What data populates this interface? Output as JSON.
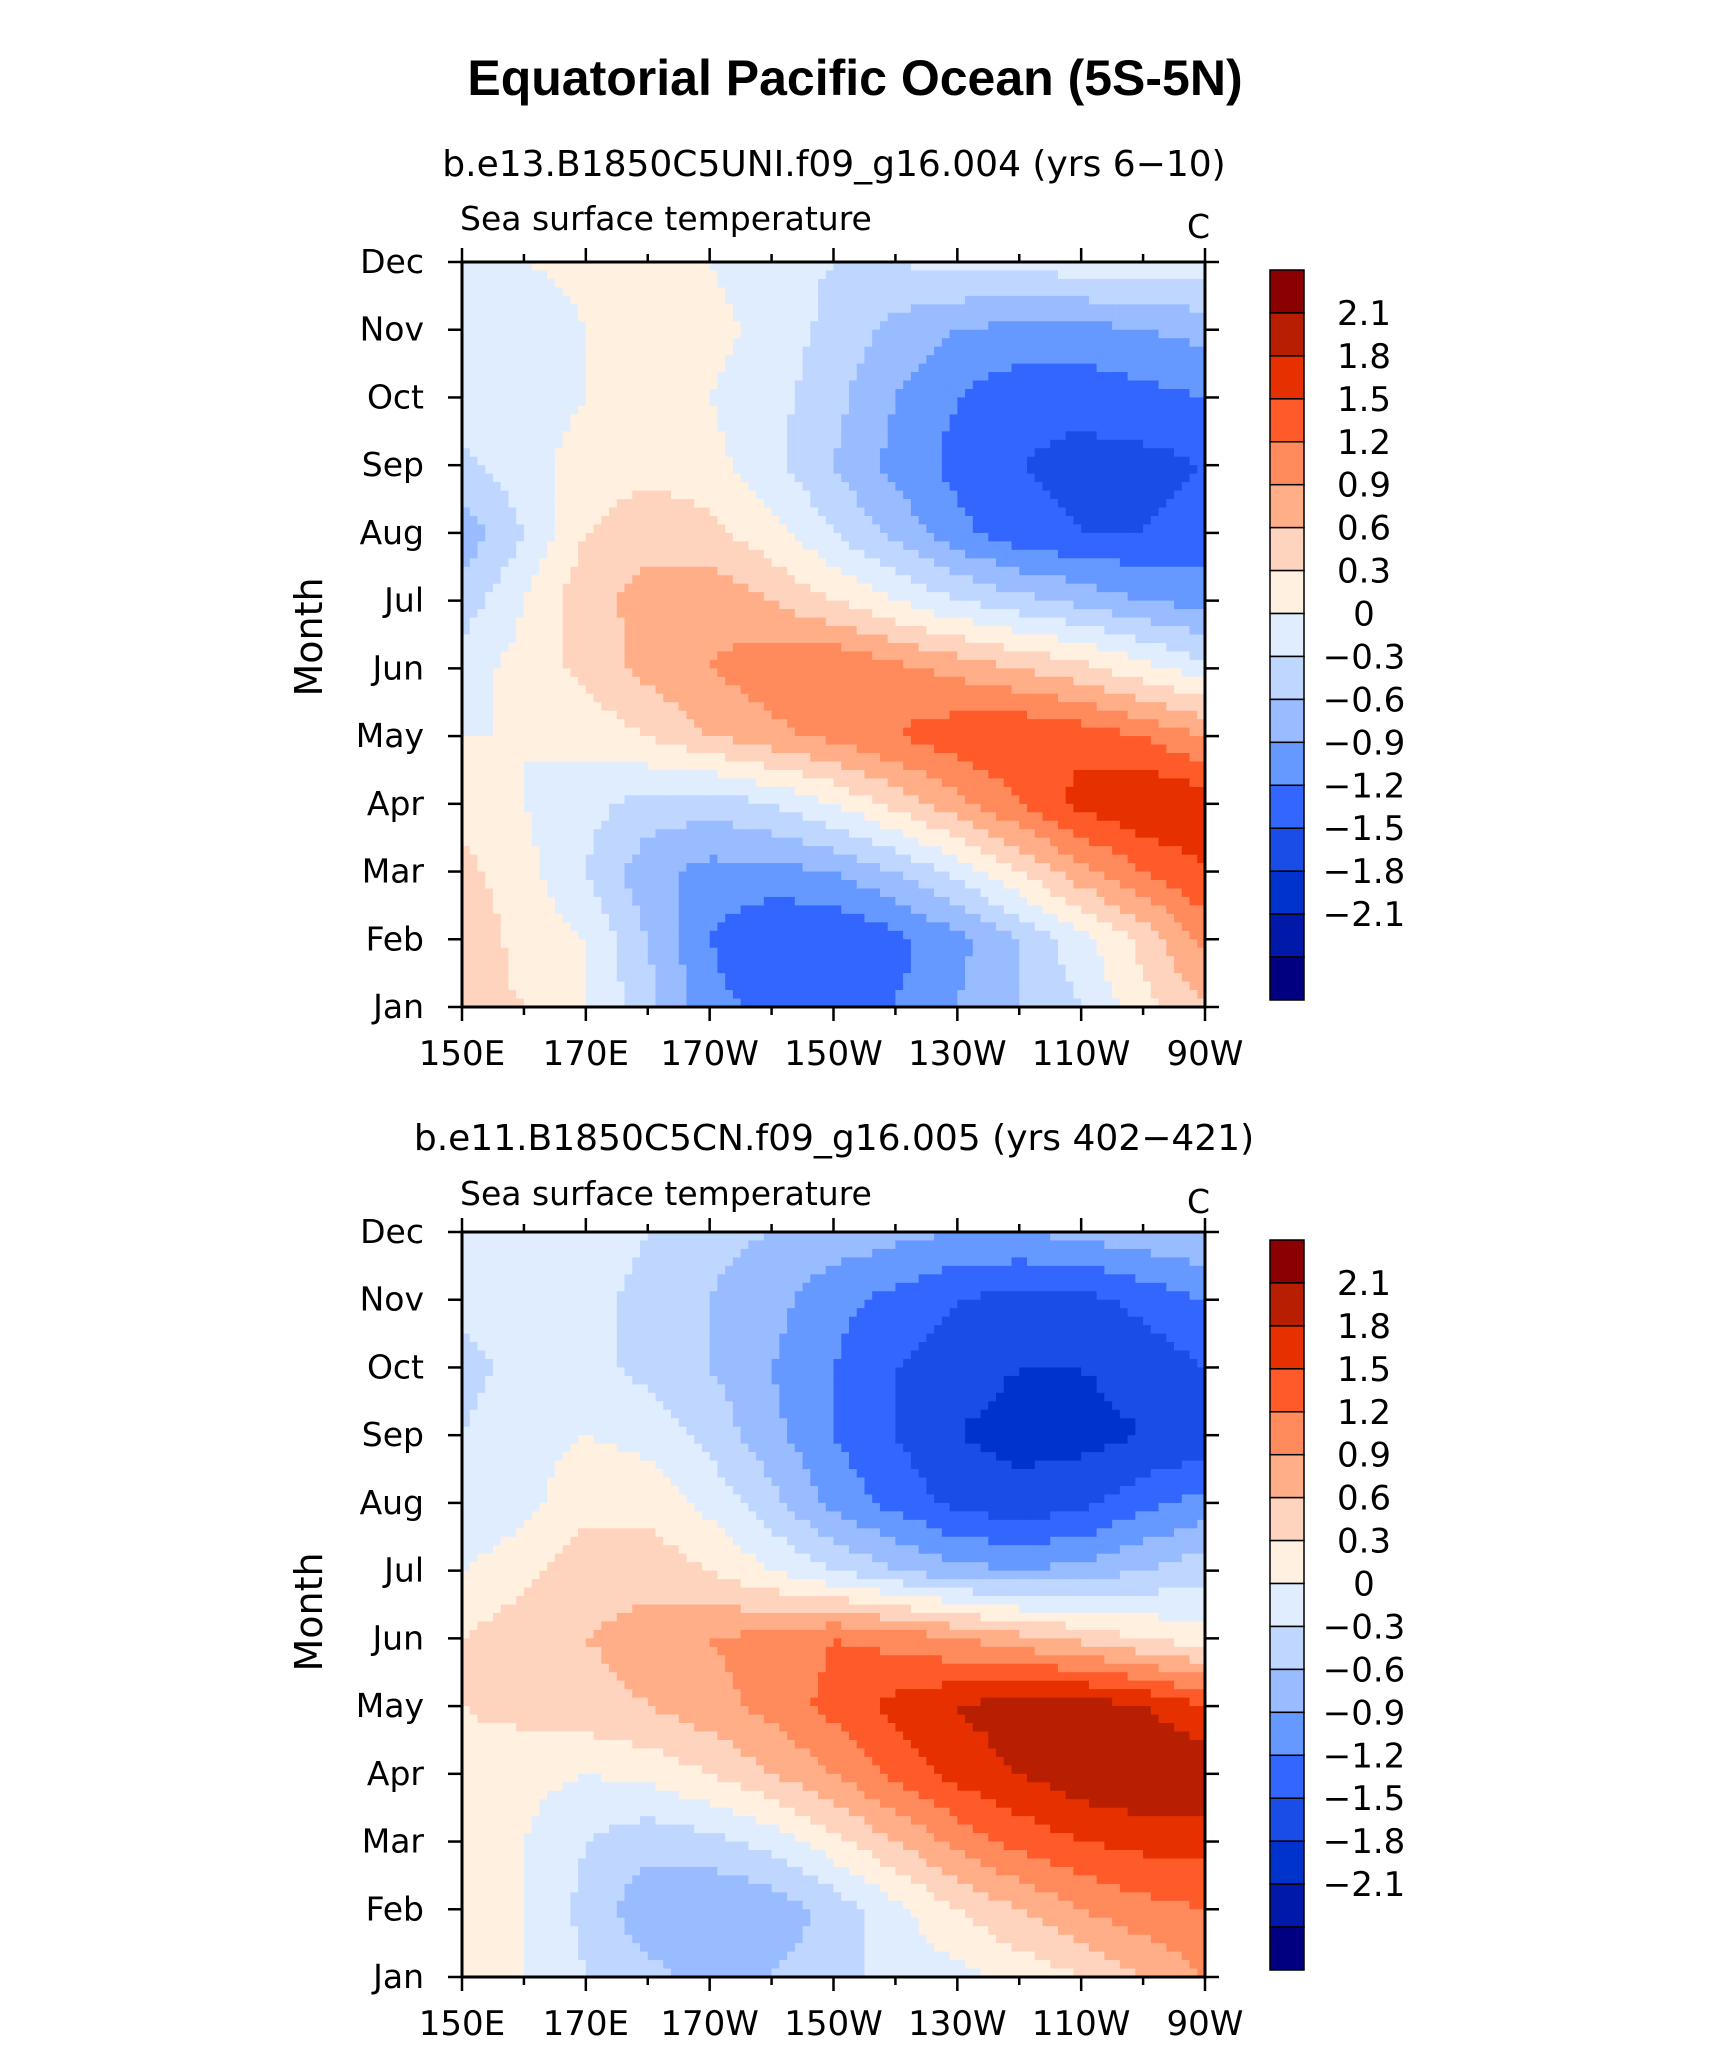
{
  "figure": {
    "title": "Equatorial Pacific Ocean (5S-5N)"
  },
  "colors": {
    "levels": [
      "#000080",
      "#0019a8",
      "#0033cc",
      "#1a4de6",
      "#3366ff",
      "#6699ff",
      "#99bbff",
      "#bfd6ff",
      "#e0edff",
      "#fff0e0",
      "#ffd4bf",
      "#ffae88",
      "#ff8a5c",
      "#ff5a2a",
      "#e63000",
      "#b81e00",
      "#8b0000"
    ]
  },
  "chart_data": [
    {
      "type": "heatmap",
      "subtitle": "b.e13.B1850C5UNI.f09_g16.004 (yrs 6−10)",
      "left_label": "Sea surface temperature",
      "units": "C",
      "ylabel": "Month",
      "x_ticks": [
        "150E",
        "170E",
        "170W",
        "150W",
        "130W",
        "110W",
        "90W"
      ],
      "x_values": [
        150,
        170,
        190,
        210,
        230,
        250,
        270
      ],
      "xlim": [
        150,
        270
      ],
      "y_ticks": [
        "Jan",
        "Feb",
        "Mar",
        "Apr",
        "May",
        "Jun",
        "Jul",
        "Aug",
        "Sep",
        "Oct",
        "Nov",
        "Dec"
      ],
      "colorbar_levels": [
        "2.1",
        "1.8",
        "1.5",
        "1.2",
        "0.9",
        "0.6",
        "0.3",
        "0",
        "−0.3",
        "−0.6",
        "−0.9",
        "−1.2",
        "−1.5",
        "−1.8",
        "−2.1"
      ],
      "grid_lon": [
        150,
        160,
        170,
        180,
        190,
        200,
        210,
        220,
        230,
        240,
        250,
        260,
        270
      ],
      "values": [
        [
          0.4,
          0.3,
          0.0,
          -0.5,
          -1.1,
          -1.3,
          -1.3,
          -1.2,
          -0.9,
          -0.6,
          -0.3,
          0.2,
          0.6
        ],
        [
          0.5,
          0.2,
          0.0,
          -0.6,
          -1.2,
          -1.5,
          -1.5,
          -1.3,
          -1.0,
          -0.6,
          -0.1,
          0.4,
          1.0
        ],
        [
          0.4,
          0.1,
          -0.3,
          -0.8,
          -1.0,
          -1.0,
          -0.9,
          -0.6,
          -0.2,
          0.3,
          0.8,
          1.2,
          1.5
        ],
        [
          0.2,
          0.0,
          -0.2,
          -0.4,
          -0.5,
          -0.3,
          0.0,
          0.4,
          0.8,
          1.2,
          1.6,
          1.8,
          1.7
        ],
        [
          0.0,
          0.0,
          0.1,
          0.3,
          0.6,
          0.8,
          1.0,
          1.2,
          1.4,
          1.5,
          1.4,
          1.2,
          0.9
        ],
        [
          -0.1,
          0.1,
          0.4,
          0.7,
          0.9,
          1.1,
          1.2,
          1.0,
          0.8,
          0.6,
          0.4,
          0.1,
          -0.2
        ],
        [
          -0.5,
          0.0,
          0.5,
          0.7,
          0.8,
          0.6,
          0.3,
          0.0,
          -0.3,
          -0.5,
          -0.7,
          -0.9,
          -1.0
        ],
        [
          -0.8,
          -0.3,
          0.3,
          0.5,
          0.4,
          0.1,
          -0.3,
          -0.7,
          -1.1,
          -1.4,
          -1.5,
          -1.5,
          -1.4
        ],
        [
          -0.4,
          -0.1,
          0.1,
          0.2,
          0.1,
          -0.2,
          -0.6,
          -1.0,
          -1.3,
          -1.5,
          -1.6,
          -1.6,
          -1.5
        ],
        [
          -0.1,
          -0.1,
          0.0,
          0.1,
          0.0,
          -0.2,
          -0.5,
          -0.9,
          -1.2,
          -1.4,
          -1.4,
          -1.3,
          -1.2
        ],
        [
          -0.2,
          -0.2,
          0.0,
          0.1,
          0.1,
          -0.1,
          -0.4,
          -0.7,
          -0.9,
          -1.0,
          -1.0,
          -0.9,
          -0.8
        ],
        [
          0.0,
          0.0,
          0.1,
          0.1,
          0.0,
          -0.2,
          -0.3,
          -0.3,
          -0.2,
          -0.2,
          -0.1,
          -0.1,
          -0.1
        ]
      ]
    },
    {
      "type": "heatmap",
      "subtitle": "b.e11.B1850C5CN.f09_g16.005 (yrs 402−421)",
      "left_label": "Sea surface temperature",
      "units": "C",
      "ylabel": "Month",
      "x_ticks": [
        "150E",
        "170E",
        "170W",
        "150W",
        "130W",
        "110W",
        "90W"
      ],
      "x_values": [
        150,
        170,
        190,
        210,
        230,
        250,
        270
      ],
      "xlim": [
        150,
        270
      ],
      "y_ticks": [
        "Jan",
        "Feb",
        "Mar",
        "Apr",
        "May",
        "Jun",
        "Jul",
        "Aug",
        "Sep",
        "Oct",
        "Nov",
        "Dec"
      ],
      "colorbar_levels": [
        "2.1",
        "1.8",
        "1.5",
        "1.2",
        "0.9",
        "0.6",
        "0.3",
        "0",
        "−0.3",
        "−0.6",
        "−0.9",
        "−1.2",
        "−1.5",
        "−1.8",
        "−2.1"
      ],
      "grid_lon": [
        150,
        160,
        170,
        180,
        190,
        200,
        210,
        220,
        230,
        240,
        250,
        260,
        270
      ],
      "values": [
        [
          0.1,
          0.0,
          -0.3,
          -0.5,
          -0.7,
          -0.6,
          -0.4,
          -0.2,
          -0.1,
          0.1,
          0.3,
          0.6,
          0.9
        ],
        [
          0.2,
          0.0,
          -0.4,
          -0.8,
          -0.9,
          -0.8,
          -0.5,
          -0.1,
          0.3,
          0.6,
          0.9,
          1.1,
          1.2
        ],
        [
          0.2,
          0.0,
          -0.3,
          -0.5,
          -0.4,
          -0.2,
          0.2,
          0.6,
          1.0,
          1.3,
          1.5,
          1.6,
          1.6
        ],
        [
          0.2,
          0.1,
          0.0,
          0.1,
          0.3,
          0.6,
          0.9,
          1.3,
          1.6,
          1.8,
          2.0,
          2.1,
          2.1
        ],
        [
          0.3,
          0.4,
          0.5,
          0.6,
          0.8,
          1.0,
          1.3,
          1.6,
          1.8,
          2.0,
          2.0,
          1.8,
          1.5
        ],
        [
          0.3,
          0.5,
          0.6,
          0.7,
          0.9,
          1.0,
          1.2,
          1.1,
          0.9,
          0.7,
          0.5,
          0.3,
          0.1
        ],
        [
          0.0,
          0.2,
          0.5,
          0.5,
          0.3,
          0.0,
          -0.3,
          -0.6,
          -0.8,
          -0.9,
          -0.8,
          -0.6,
          -0.4
        ],
        [
          -0.3,
          -0.1,
          0.2,
          0.2,
          -0.1,
          -0.5,
          -1.0,
          -1.3,
          -1.6,
          -1.7,
          -1.6,
          -1.3,
          -1.1
        ],
        [
          -0.3,
          -0.1,
          0.0,
          -0.1,
          -0.4,
          -0.8,
          -1.2,
          -1.5,
          -1.8,
          -1.9,
          -1.9,
          -1.8,
          -1.7
        ],
        [
          -0.4,
          -0.2,
          -0.2,
          -0.4,
          -0.6,
          -0.9,
          -1.2,
          -1.5,
          -1.7,
          -1.8,
          -1.8,
          -1.7,
          -1.5
        ],
        [
          -0.2,
          -0.2,
          -0.2,
          -0.4,
          -0.6,
          -0.8,
          -1.1,
          -1.3,
          -1.5,
          -1.6,
          -1.6,
          -1.4,
          -1.2
        ],
        [
          -0.1,
          -0.1,
          -0.1,
          -0.3,
          -0.5,
          -0.6,
          -0.7,
          -0.8,
          -0.9,
          -0.9,
          -0.8,
          -0.7,
          -0.6
        ]
      ]
    }
  ]
}
